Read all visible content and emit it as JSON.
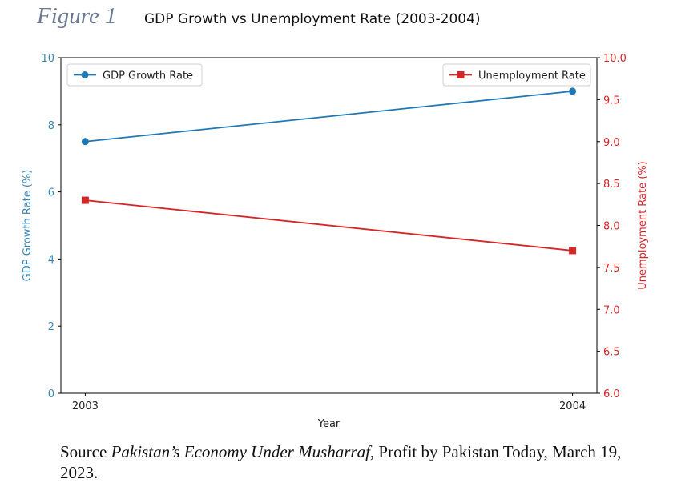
{
  "figure_label": "Figure 1",
  "source": {
    "prefix": "Source ",
    "italic": "Pakistan’s Economy Under Musharraf",
    "suffix": ", Profit by Pakistan Today, March 19, 2023."
  },
  "chart_data": {
    "type": "line",
    "title": "GDP Growth vs Unemployment Rate (2003-2004)",
    "xlabel": "Year",
    "ylabel_left": "GDP Growth Rate (%)",
    "ylabel_right": "Unemployment Rate (%)",
    "x": [
      2003,
      2004
    ],
    "x_tick_labels": [
      "2003",
      "2004"
    ],
    "ylim_left": [
      0,
      10
    ],
    "ylim_right": [
      6.0,
      10.0
    ],
    "y_ticks_left": [
      "0",
      "2",
      "4",
      "6",
      "8",
      "10"
    ],
    "y_ticks_right": [
      "6.0",
      "6.5",
      "7.0",
      "7.5",
      "8.0",
      "8.5",
      "9.0",
      "9.5",
      "10.0"
    ],
    "grid": false,
    "series": [
      {
        "name": "GDP Growth Rate",
        "axis": "left",
        "values": [
          7.5,
          9.0
        ],
        "color": "#1f77b4",
        "marker": "circle",
        "legend": "top-left"
      },
      {
        "name": "Unemployment Rate",
        "axis": "right",
        "values": [
          8.3,
          7.7
        ],
        "color": "#d62728",
        "marker": "square",
        "legend": "top-right"
      }
    ],
    "left_axis_color": "#3a87b8",
    "right_axis_color": "#d62728"
  }
}
